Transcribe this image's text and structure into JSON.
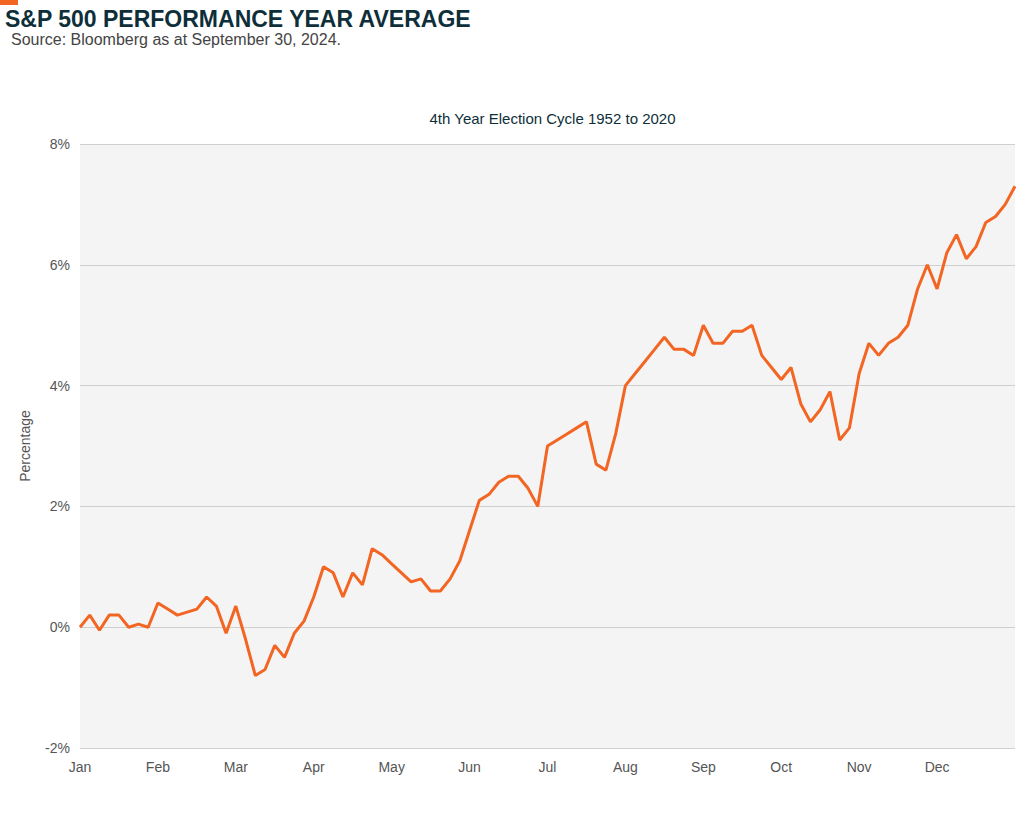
{
  "chart_data": {
    "type": "line",
    "title": "S&P 500 PERFORMANCE YEAR AVERAGE",
    "subtitle": "Source: Bloomberg as at September 30, 2024.",
    "chart_title": "4th Year Election Cycle 1952 to 2020",
    "y_label": "Percentage",
    "categories": [
      "Jan",
      null,
      null,
      null,
      null,
      null,
      null,
      null,
      "Feb",
      null,
      null,
      null,
      null,
      null,
      null,
      null,
      "Mar",
      null,
      null,
      null,
      null,
      null,
      null,
      null,
      "Apr",
      null,
      null,
      null,
      null,
      null,
      null,
      null,
      "May",
      null,
      null,
      null,
      null,
      null,
      null,
      null,
      "Jun",
      null,
      null,
      null,
      null,
      null,
      null,
      null,
      "Jul",
      null,
      null,
      null,
      null,
      null,
      null,
      null,
      "Aug",
      null,
      null,
      null,
      null,
      null,
      null,
      null,
      "Sep",
      null,
      null,
      null,
      null,
      null,
      null,
      null,
      "Oct",
      null,
      null,
      null,
      null,
      null,
      null,
      null,
      "Nov",
      null,
      null,
      null,
      null,
      null,
      null,
      null,
      "Dec",
      null,
      null,
      null,
      null,
      null,
      null,
      null,
      null
    ],
    "values": [
      0.0,
      0.2,
      -0.05,
      0.2,
      0.2,
      0.0,
      0.05,
      0.0,
      0.4,
      0.3,
      0.2,
      0.25,
      0.3,
      0.5,
      0.35,
      -0.1,
      0.35,
      -0.2,
      -0.8,
      -0.7,
      -0.3,
      -0.5,
      -0.1,
      0.1,
      0.5,
      1.0,
      0.9,
      0.5,
      0.9,
      0.7,
      1.3,
      1.2,
      1.05,
      0.9,
      0.75,
      0.8,
      0.6,
      0.6,
      0.8,
      1.1,
      1.6,
      2.1,
      2.2,
      2.4,
      2.5,
      2.5,
      2.3,
      2.0,
      3.0,
      3.1,
      3.2,
      3.3,
      3.4,
      2.7,
      2.6,
      3.2,
      4.0,
      4.2,
      4.4,
      4.6,
      4.8,
      4.6,
      4.6,
      4.5,
      5.0,
      4.7,
      4.7,
      4.9,
      4.9,
      5.0,
      4.5,
      4.3,
      4.1,
      4.3,
      3.7,
      3.4,
      3.6,
      3.9,
      3.1,
      3.3,
      4.2,
      4.7,
      4.5,
      4.7,
      4.8,
      5.0,
      5.6,
      6.0,
      5.6,
      6.2,
      6.5,
      6.1,
      6.3,
      6.7,
      6.8,
      7.0,
      7.3
    ],
    "color": "#f26522",
    "ylim": [
      -2,
      8
    ],
    "yticks": [
      {
        "value": -2,
        "label": "-2%"
      },
      {
        "value": 0,
        "label": "0%"
      },
      {
        "value": 2,
        "label": "2%"
      },
      {
        "value": 4,
        "label": "4%"
      },
      {
        "value": 6,
        "label": "6%"
      },
      {
        "value": 8,
        "label": "8%"
      }
    ],
    "grid": true
  }
}
